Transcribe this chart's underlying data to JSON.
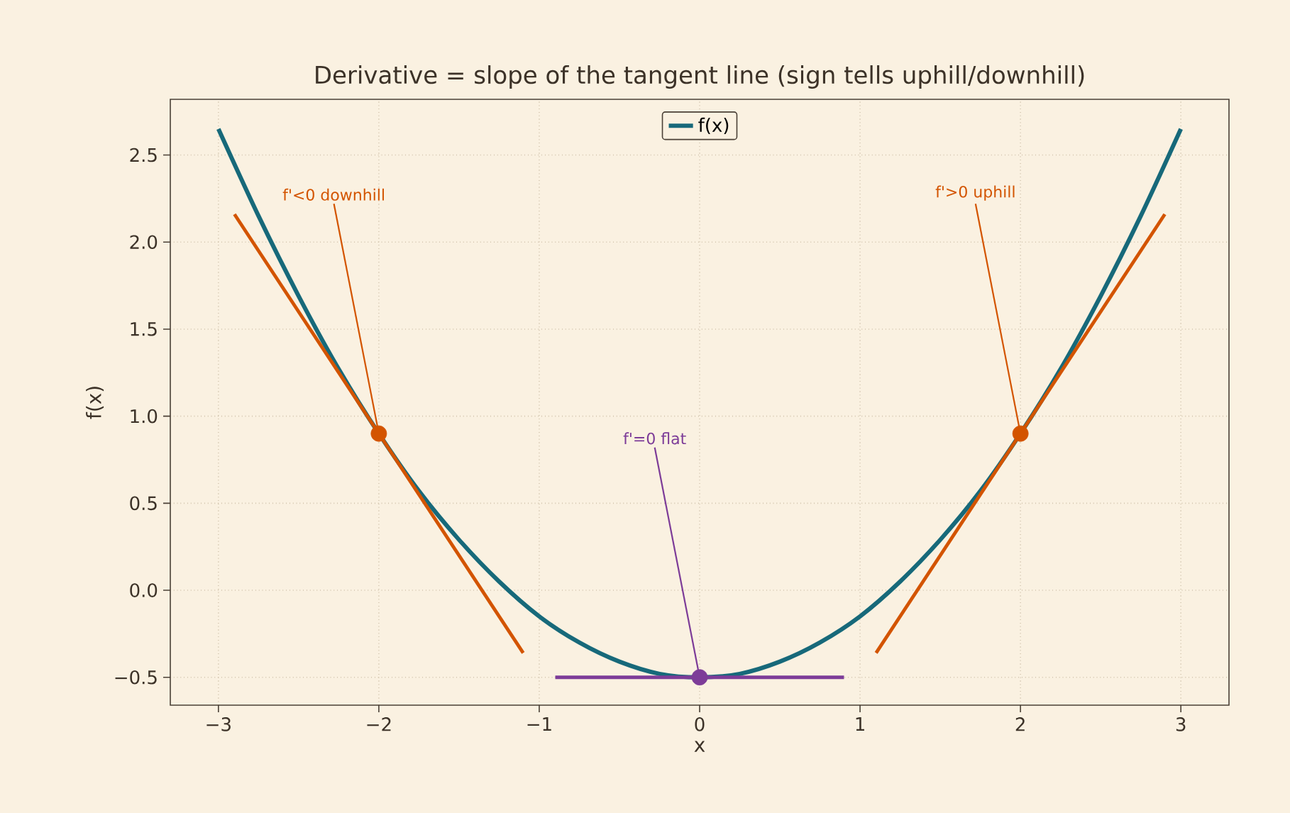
{
  "chart_data": {
    "type": "line",
    "title": "Derivative = slope of the tangent line (sign tells uphill/downhill)",
    "xlabel": "x",
    "ylabel": "f(x)",
    "xlim": [
      -3.3,
      3.3
    ],
    "ylim": [
      -0.66,
      2.82
    ],
    "xticks": [
      {
        "value": -3,
        "label": "−3"
      },
      {
        "value": -2,
        "label": "−2"
      },
      {
        "value": -1,
        "label": "−1"
      },
      0,
      1,
      2,
      3
    ],
    "yticks": [
      {
        "value": -0.5,
        "label": "−0.5"
      },
      {
        "value": 0,
        "label": "0.0"
      },
      0.5,
      {
        "value": 1,
        "label": "1.0"
      },
      1.5,
      {
        "value": 2,
        "label": "2.0"
      },
      2.5
    ],
    "grid": true,
    "legend": "top",
    "series": [
      {
        "name": "f(x)",
        "color": "#17697a",
        "x": [
          -3,
          -2.75,
          -2.5,
          -2.25,
          -2,
          -1.75,
          -1.5,
          -1.25,
          -1,
          -0.75,
          -0.5,
          -0.25,
          0,
          0.25,
          0.5,
          0.75,
          1,
          1.25,
          1.5,
          1.75,
          2,
          2.25,
          2.5,
          2.75,
          3
        ],
        "values": [
          2.65,
          2.15,
          1.69,
          1.27,
          0.9,
          0.57,
          0.29,
          0.05,
          -0.15,
          -0.3,
          -0.41,
          -0.48,
          -0.5,
          -0.48,
          -0.41,
          -0.3,
          -0.15,
          0.05,
          0.29,
          0.57,
          0.9,
          1.27,
          1.69,
          2.15,
          2.65
        ]
      },
      {
        "color": "#d35400",
        "x": [
          -2.9,
          -1.1
        ],
        "values": [
          2.16,
          -0.36
        ]
      },
      {
        "color": "#7d3c98",
        "x": [
          -0.9,
          0.9
        ],
        "values": [
          -0.5,
          -0.5
        ]
      },
      {
        "color": "#d35400",
        "x": [
          1.1,
          2.9
        ],
        "values": [
          -0.36,
          2.16
        ]
      },
      {
        "type": "scatter",
        "marker": "circle",
        "color": "#d35400",
        "x": [
          -2,
          2
        ],
        "values": [
          0.9,
          0.9
        ]
      },
      {
        "type": "scatter",
        "marker": "circle",
        "color": "#7d3c98",
        "x": [
          0
        ],
        "values": [
          -0.5
        ]
      }
    ],
    "annotations": [
      {
        "text": "f'<0 downhill",
        "x": -2,
        "y": 0.9
      },
      {
        "text": "f'>0 uphill",
        "x": 2,
        "y": 0.9
      },
      {
        "text": "f'=0 flat",
        "x": 0,
        "y": -0.5
      }
    ]
  }
}
